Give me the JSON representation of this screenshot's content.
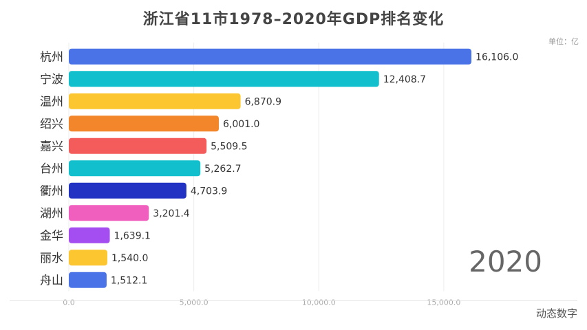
{
  "header": {
    "title": "浙江省11市1978–2020年GDP排名变化",
    "unit": "单位：亿"
  },
  "footer": {
    "brand": "动态数字"
  },
  "chart_data": {
    "type": "bar",
    "orientation": "horizontal",
    "title": "浙江省11市1978–2020年GDP排名变化",
    "year": "2020",
    "categories": [
      "杭州",
      "宁波",
      "温州",
      "绍兴",
      "嘉兴",
      "台州",
      "衢州",
      "湖州",
      "金华",
      "丽水",
      "舟山"
    ],
    "values": [
      16106.0,
      12408.7,
      6870.9,
      6001.0,
      5509.5,
      5262.7,
      4703.9,
      3201.4,
      1639.1,
      1540.0,
      1512.1
    ],
    "value_labels": [
      "16,106.0",
      "12,408.7",
      "6,870.9",
      "6,001.0",
      "5,509.5",
      "5,262.7",
      "4,703.9",
      "3,201.4",
      "1,639.1",
      "1,540.0",
      "1,512.1"
    ],
    "colors": [
      "#4a73e8",
      "#11c0cc",
      "#fcc630",
      "#f3862a",
      "#f45b5b",
      "#11c0cc",
      "#2233c4",
      "#f05fbd",
      "#a44df0",
      "#fcc630",
      "#4a73e8"
    ],
    "xticks": [
      0,
      5000,
      10000,
      15000
    ],
    "xtick_labels": [
      "0.0",
      "5,000.0",
      "10,000.0",
      "15,000.0"
    ],
    "xlim": [
      0,
      16600
    ],
    "grid": true
  }
}
